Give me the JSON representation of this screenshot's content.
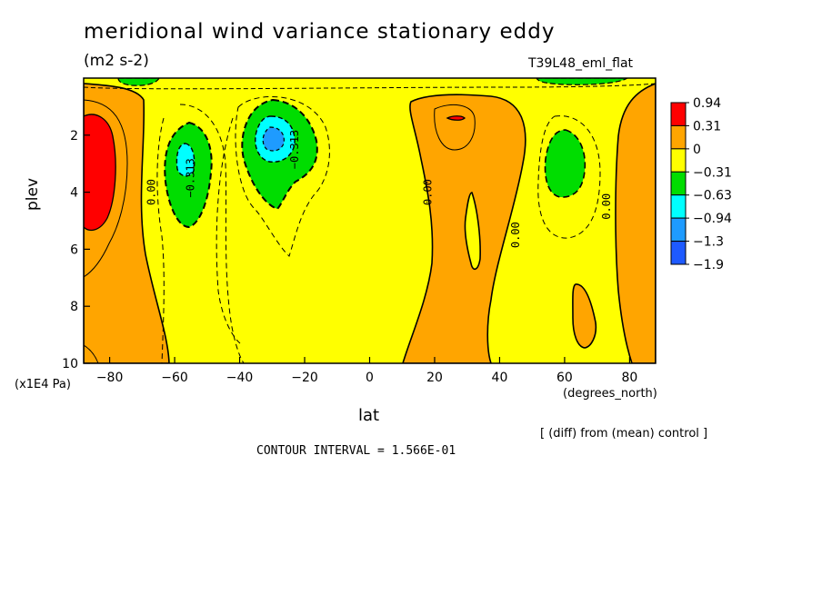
{
  "chart_data": {
    "type": "heatmap",
    "title": "meridional wind variance  stationary eddy",
    "units": "(m2 s-2)",
    "run_label": "T39L48_eml_flat",
    "xlabel": "lat",
    "xunits": "(degrees_north)",
    "ylabel": "plev",
    "yunits": "(x1E4 Pa)",
    "x_ticks": [
      -80,
      -60,
      -40,
      -20,
      0,
      20,
      40,
      60,
      80
    ],
    "y_ticks": [
      2,
      4,
      6,
      8,
      10
    ],
    "xlim": [
      -88,
      88
    ],
    "ylim": [
      10,
      0
    ],
    "footer_diff": "[ (diff) from (mean) control ]",
    "contour_interval": "CONTOUR INTERVAL = 1.566E-01",
    "colorbar": {
      "levels": [
        "0.94",
        "0.31",
        "0",
        "-0.31",
        "-0.63",
        "-0.94",
        "-1.3",
        "-1.9"
      ],
      "colors": [
        "#ff0000",
        "#ffa500",
        "#ffff00",
        "#00dd00",
        "#00ffff",
        "#1e9bff",
        "#1e5aff"
      ]
    },
    "contour_labels": [
      {
        "text": "0.00",
        "lat": -66,
        "plev": 4.0
      },
      {
        "text": "-0.313",
        "lat": -54,
        "plev": 3.5
      },
      {
        "text": "-0.313",
        "lat": -22,
        "plev": 2.5
      },
      {
        "text": "0.00",
        "lat": 19,
        "plev": 4.0
      },
      {
        "text": "0.00",
        "lat": 46,
        "plev": 5.5
      },
      {
        "text": "0.00",
        "lat": 74,
        "plev": 4.5
      }
    ]
  }
}
